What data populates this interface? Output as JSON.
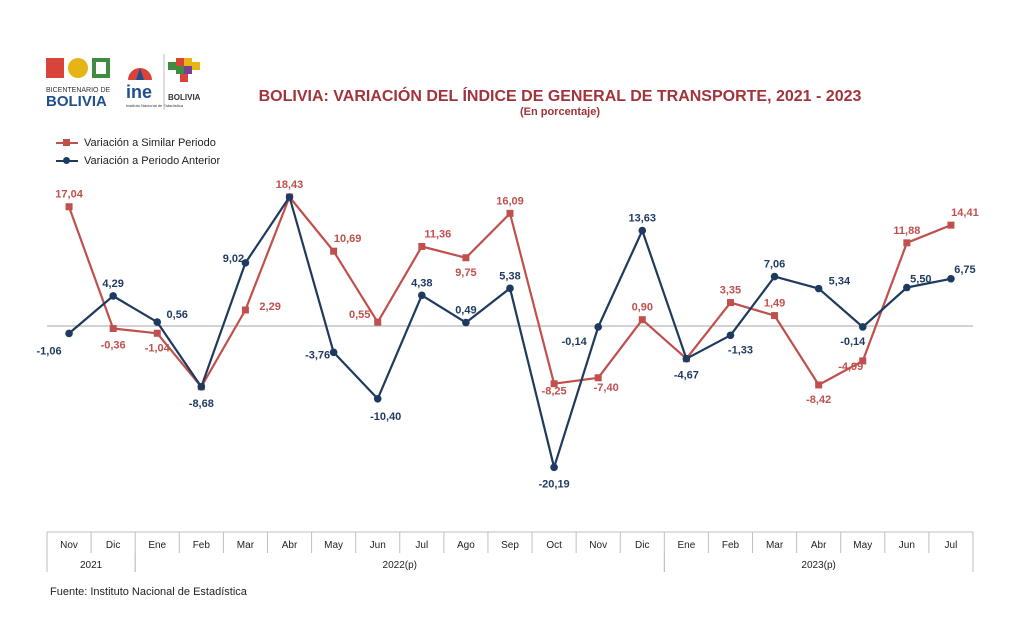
{
  "header": {
    "title": "BOLIVIA: VARIACIÓN DEL ÍNDICE DE GENERAL DE TRANSPORTE,  2021 - 2023",
    "subtitle": "(En porcentaje)",
    "logos": {
      "bicentenario_line1": "BICENTENARIO DE",
      "bicentenario_line2": "BOLIVIA",
      "ine": "ine",
      "ine_sub": "Instituto Nacional de Estadística",
      "estado": "BOLIVIA"
    }
  },
  "source": "Fuente: Instituto Nacional de Estadística",
  "colors": {
    "similar": "#c0504d",
    "anterior": "#1f3a5f",
    "axis": "#999999"
  },
  "chart_data": {
    "type": "line",
    "title": "BOLIVIA: VARIACIÓN DEL ÍNDICE DE GENERAL DE TRANSPORTE,  2021 - 2023",
    "subtitle": "(En porcentaje)",
    "categories": [
      "Nov",
      "Dic",
      "Ene",
      "Feb",
      "Mar",
      "Abr",
      "May",
      "Jun",
      "Jul",
      "Ago",
      "Sep",
      "Oct",
      "Nov",
      "Dic",
      "Ene",
      "Feb",
      "Mar",
      "Abr",
      "May",
      "Jun",
      "Jul"
    ],
    "year_groups": [
      {
        "label": "2021",
        "start": 0,
        "end": 1
      },
      {
        "label": "2022(p)",
        "start": 2,
        "end": 13
      },
      {
        "label": "2023(p)",
        "start": 14,
        "end": 20
      }
    ],
    "ylim": [
      -25,
      22
    ],
    "legend_position": "top-left",
    "series": [
      {
        "name": "Variación a Similar Periodo",
        "marker": "square",
        "values": [
          17.04,
          -0.36,
          -1.04,
          -8.68,
          2.29,
          18.43,
          10.69,
          0.55,
          11.36,
          9.75,
          16.09,
          -8.25,
          -7.4,
          0.9,
          -4.67,
          3.35,
          1.49,
          -8.42,
          -4.99,
          11.88,
          14.41
        ],
        "labels": [
          "17,04",
          "-0,36",
          "-1,04",
          "",
          "2,29",
          "18,43",
          "10,69",
          "0,55",
          "11,36",
          "9,75",
          "16,09",
          "-8,25",
          "-7,40",
          "0,90",
          "",
          "3,35",
          "1,49",
          "-8,42",
          "-4,99",
          "11,88",
          "14,41"
        ]
      },
      {
        "name": "Variación a Periodo Anterior",
        "marker": "circle",
        "values": [
          -1.06,
          4.29,
          0.56,
          -8.68,
          9.02,
          18.43,
          -3.76,
          -10.4,
          4.38,
          0.49,
          5.38,
          -20.19,
          -0.14,
          13.63,
          -4.67,
          -1.33,
          7.06,
          5.34,
          -0.14,
          5.5,
          6.75
        ],
        "labels": [
          "-1,06",
          "4,29",
          "0,56",
          "-8,68",
          "9,02",
          "",
          "-3,76",
          "-10,40",
          "4,38",
          "0,49",
          "5,38",
          "-20,19",
          "-0,14",
          "13,63",
          "-4,67",
          "-1,33",
          "7,06",
          "5,34",
          "-0,14",
          "5,50",
          "6,75"
        ]
      }
    ]
  }
}
